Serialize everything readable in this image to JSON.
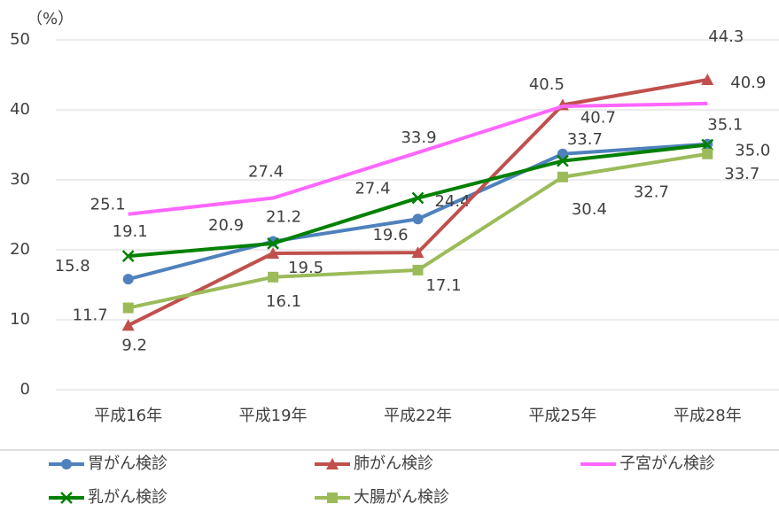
{
  "chart_data": {
    "type": "line",
    "y_unit_label": "（%）",
    "categories": [
      "平成16年",
      "平成19年",
      "平成22年",
      "平成25年",
      "平成28年"
    ],
    "ylim": [
      0,
      50
    ],
    "yticks": [
      0,
      10,
      20,
      30,
      40,
      50
    ],
    "grid": true,
    "legend": "bottom",
    "series": [
      {
        "name": "胃がん検診",
        "color": "#4f81bd",
        "marker": "circle",
        "values": [
          15.8,
          21.2,
          24.4,
          33.7,
          35.1
        ]
      },
      {
        "name": "肺がん検診",
        "color": "#c0504d",
        "marker": "triangle",
        "values": [
          9.2,
          19.5,
          19.6,
          40.7,
          44.3
        ]
      },
      {
        "name": "子宮がん検診",
        "color": "#ff66ff",
        "marker": "none",
        "values": [
          25.1,
          27.4,
          33.9,
          40.5,
          40.9
        ]
      },
      {
        "name": "乳がん検診",
        "color": "#008000",
        "marker": "x",
        "values": [
          19.1,
          20.9,
          27.4,
          32.7,
          35.0
        ],
        "value_labels": [
          "19.1",
          "20.9",
          "27.4",
          "32.7",
          "35.0"
        ]
      },
      {
        "name": "大腸がん検診",
        "color": "#9bbb59",
        "marker": "square",
        "values": [
          11.7,
          16.1,
          17.1,
          30.4,
          33.7
        ]
      }
    ]
  }
}
